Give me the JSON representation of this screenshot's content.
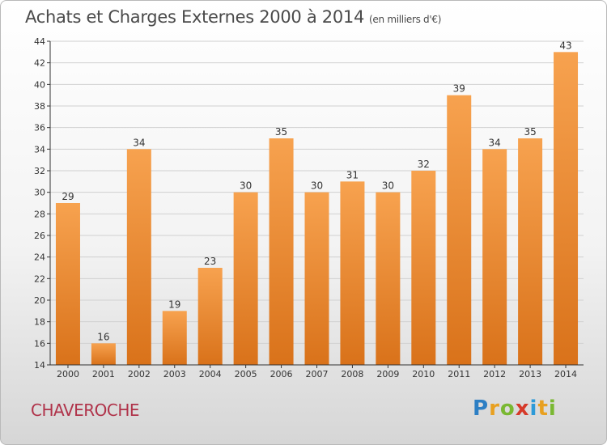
{
  "title": "Achats et Charges Externes 2000 à 2014",
  "subtitle": "(en milliers d'€)",
  "town": "CHAVEROCHE",
  "brand": {
    "text": "Proxiti",
    "letters": [
      "P",
      "r",
      "o",
      "x",
      "i",
      "t",
      "i"
    ],
    "colors": [
      "#2d7fc4",
      "#e8a020",
      "#7ab832",
      "#d63a2a",
      "#2d9ad8",
      "#e8a020",
      "#7ab832"
    ]
  },
  "colors": {
    "bar_light": "#f7a24f",
    "bar_dark": "#d9721a",
    "axis": "#333333",
    "grid": "#d0d0d0",
    "text": "#333333"
  },
  "chart_data": {
    "type": "bar",
    "categories": [
      "2000",
      "2001",
      "2002",
      "2003",
      "2004",
      "2005",
      "2006",
      "2007",
      "2008",
      "2009",
      "2010",
      "2011",
      "2012",
      "2013",
      "2014"
    ],
    "values": [
      29,
      16,
      34,
      19,
      23,
      30,
      35,
      30,
      31,
      30,
      32,
      39,
      34,
      35,
      43
    ],
    "ylim": [
      14,
      44
    ],
    "yticks": [
      14,
      16,
      18,
      20,
      22,
      24,
      26,
      28,
      30,
      32,
      34,
      36,
      38,
      40,
      42,
      44
    ],
    "grid": true
  }
}
